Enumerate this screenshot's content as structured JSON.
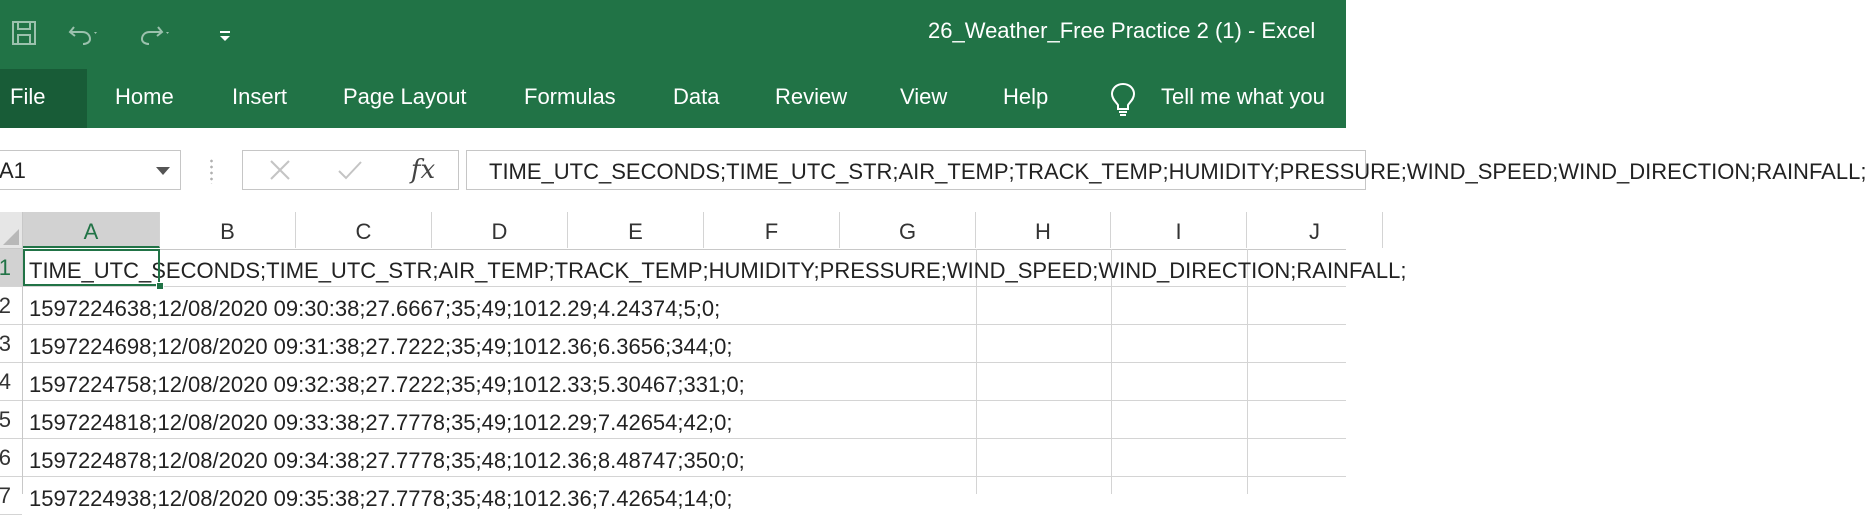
{
  "window": {
    "title": "26_Weather_Free Practice 2 (1)  -  Excel"
  },
  "quick_access": {
    "icons": [
      "save-icon",
      "undo-icon",
      "redo-icon",
      "customize-qat-icon"
    ]
  },
  "ribbon": {
    "tabs": [
      "File",
      "Home",
      "Insert",
      "Page Layout",
      "Formulas",
      "Data",
      "Review",
      "View",
      "Help"
    ],
    "tell_me": "Tell me what you"
  },
  "formula_bar": {
    "name_box": "A1",
    "fx_label": "fx",
    "content": "TIME_UTC_SECONDS;TIME_UTC_STR;AIR_TEMP;TRACK_TEMP;HUMIDITY;PRESSURE;WIND_SPEED;WIND_DIRECTION;RAINFALL;"
  },
  "sheet": {
    "columns": [
      "A",
      "B",
      "C",
      "D",
      "E",
      "F",
      "G",
      "H",
      "I",
      "J"
    ],
    "row_numbers": [
      "1",
      "2",
      "3",
      "4",
      "5",
      "6",
      "7"
    ],
    "rows": [
      "TIME_UTC_SECONDS;TIME_UTC_STR;AIR_TEMP;TRACK_TEMP;HUMIDITY;PRESSURE;WIND_SPEED;WIND_DIRECTION;RAINFALL;",
      "1597224638;12/08/2020 09:30:38;27.6667;35;49;1012.29;4.24374;5;0;",
      "1597224698;12/08/2020 09:31:38;27.7222;35;49;1012.36;6.3656;344;0;",
      "1597224758;12/08/2020 09:32:38;27.7222;35;49;1012.33;5.30467;331;0;",
      "1597224818;12/08/2020 09:33:38;27.7778;35;49;1012.29;7.42654;42;0;",
      "1597224878;12/08/2020 09:34:38;27.7778;35;48;1012.36;8.48747;350;0;",
      "1597224938;12/08/2020 09:35:38;27.7778;35;48;1012.36;7.42654;14;0;"
    ],
    "selected_cell": "A1"
  },
  "colors": {
    "excel_green": "#217346",
    "file_tab_dark": "#185c37"
  }
}
